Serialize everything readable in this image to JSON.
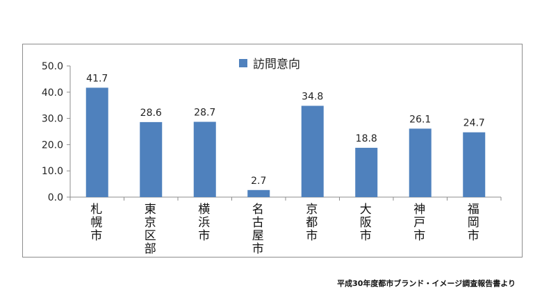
{
  "chart_data": {
    "type": "bar",
    "categories": [
      "札幌市",
      "東京区部",
      "横浜市",
      "名古屋市",
      "京都市",
      "大阪市",
      "神戸市",
      "福岡市"
    ],
    "series": [
      {
        "name": "訪問意向",
        "values": [
          41.7,
          28.6,
          28.7,
          2.7,
          34.8,
          18.8,
          26.1,
          24.7
        ]
      }
    ],
    "data_labels": [
      "41.7",
      "28.6",
      "28.7",
      "2.7",
      "34.8",
      "18.8",
      "26.1",
      "24.7"
    ],
    "y_ticks": [
      "0.0",
      "10.0",
      "20.0",
      "30.0",
      "40.0",
      "50.0"
    ],
    "ylim": [
      0,
      50
    ],
    "grid": false,
    "legend_position": "top-center",
    "bar_color": "#4f81bd"
  },
  "source_note": "平成30年度都市ブランド・イメージ調査報告書より"
}
